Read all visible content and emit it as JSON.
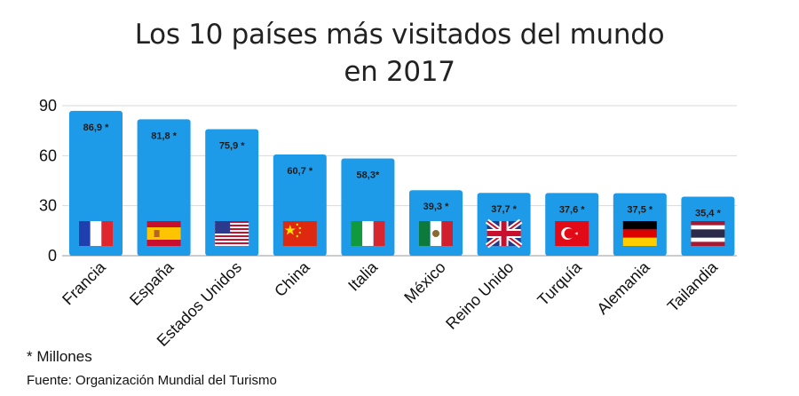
{
  "chart_data": {
    "type": "bar",
    "title_lines": [
      "Los 10 países más visitados del mundo",
      "en 2017"
    ],
    "categories": [
      "Francia",
      "España",
      "Estados Unidos",
      "China",
      "Italia",
      "México",
      "Reino Unido",
      "Turquía",
      "Alemania",
      "Tailandia"
    ],
    "values": [
      86.9,
      81.8,
      75.9,
      60.7,
      58.3,
      39.3,
      37.7,
      37.6,
      37.5,
      35.4
    ],
    "data_labels": [
      "86,9 *",
      "81,8 *",
      "75,9 *",
      "60,7 *",
      "58,3*",
      "39,3 *",
      "37,7 *",
      "37,6 *",
      "37,5 *",
      "35,4 *"
    ],
    "flags": [
      "france-flag-icon",
      "spain-flag-icon",
      "usa-flag-icon",
      "china-flag-icon",
      "italy-flag-icon",
      "mexico-flag-icon",
      "uk-flag-icon",
      "turkey-flag-icon",
      "germany-flag-icon",
      "thailand-flag-icon"
    ],
    "yticks": [
      0,
      30,
      60,
      90
    ],
    "ylim": [
      0,
      90
    ],
    "grid": true,
    "bar_color": "#1e9be8"
  },
  "footnotes": {
    "unit_note": "* Millones",
    "source": "Fuente: Organización Mundial del Turismo"
  }
}
